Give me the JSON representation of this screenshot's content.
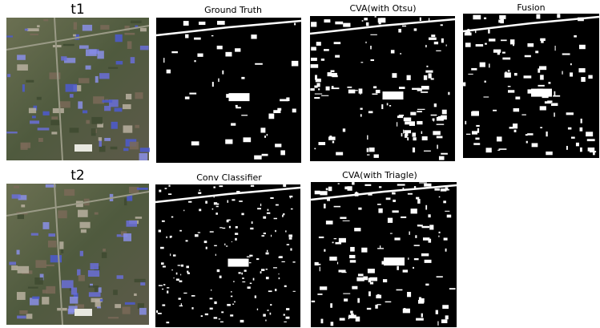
{
  "panels": [
    {
      "label": "t1"
    },
    {
      "label": "Ground Truth"
    },
    {
      "label": "CVA(with Otsu)"
    },
    {
      "label": "Fusion"
    },
    {
      "label": "t2"
    },
    {
      "label": "Conv Classifier"
    },
    {
      "label": "CVA(with Triagle)"
    }
  ]
}
